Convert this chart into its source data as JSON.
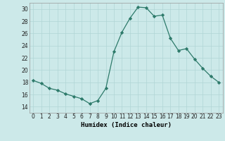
{
  "x": [
    0,
    1,
    2,
    3,
    4,
    5,
    6,
    7,
    8,
    9,
    10,
    11,
    12,
    13,
    14,
    15,
    16,
    17,
    18,
    19,
    20,
    21,
    22,
    23
  ],
  "y": [
    18.3,
    17.8,
    17.0,
    16.7,
    16.1,
    15.7,
    15.3,
    14.5,
    15.0,
    17.0,
    23.0,
    26.2,
    28.5,
    30.3,
    30.2,
    28.8,
    29.0,
    25.2,
    23.2,
    23.5,
    21.8,
    20.3,
    19.0,
    18.0
  ],
  "xlabel": "Humidex (Indice chaleur)",
  "ylim": [
    13,
    31
  ],
  "xlim": [
    -0.5,
    23.5
  ],
  "yticks": [
    14,
    16,
    18,
    20,
    22,
    24,
    26,
    28,
    30
  ],
  "xticks": [
    0,
    1,
    2,
    3,
    4,
    5,
    6,
    7,
    8,
    9,
    10,
    11,
    12,
    13,
    14,
    15,
    16,
    17,
    18,
    19,
    20,
    21,
    22,
    23
  ],
  "line_color": "#2d7a6a",
  "marker": "D",
  "marker_size": 2.2,
  "bg_color": "#cce9e9",
  "grid_color": "#b0d5d5",
  "axes_bg": "#cce9e9",
  "tick_fontsize": 5.5,
  "xlabel_fontsize": 6.5
}
